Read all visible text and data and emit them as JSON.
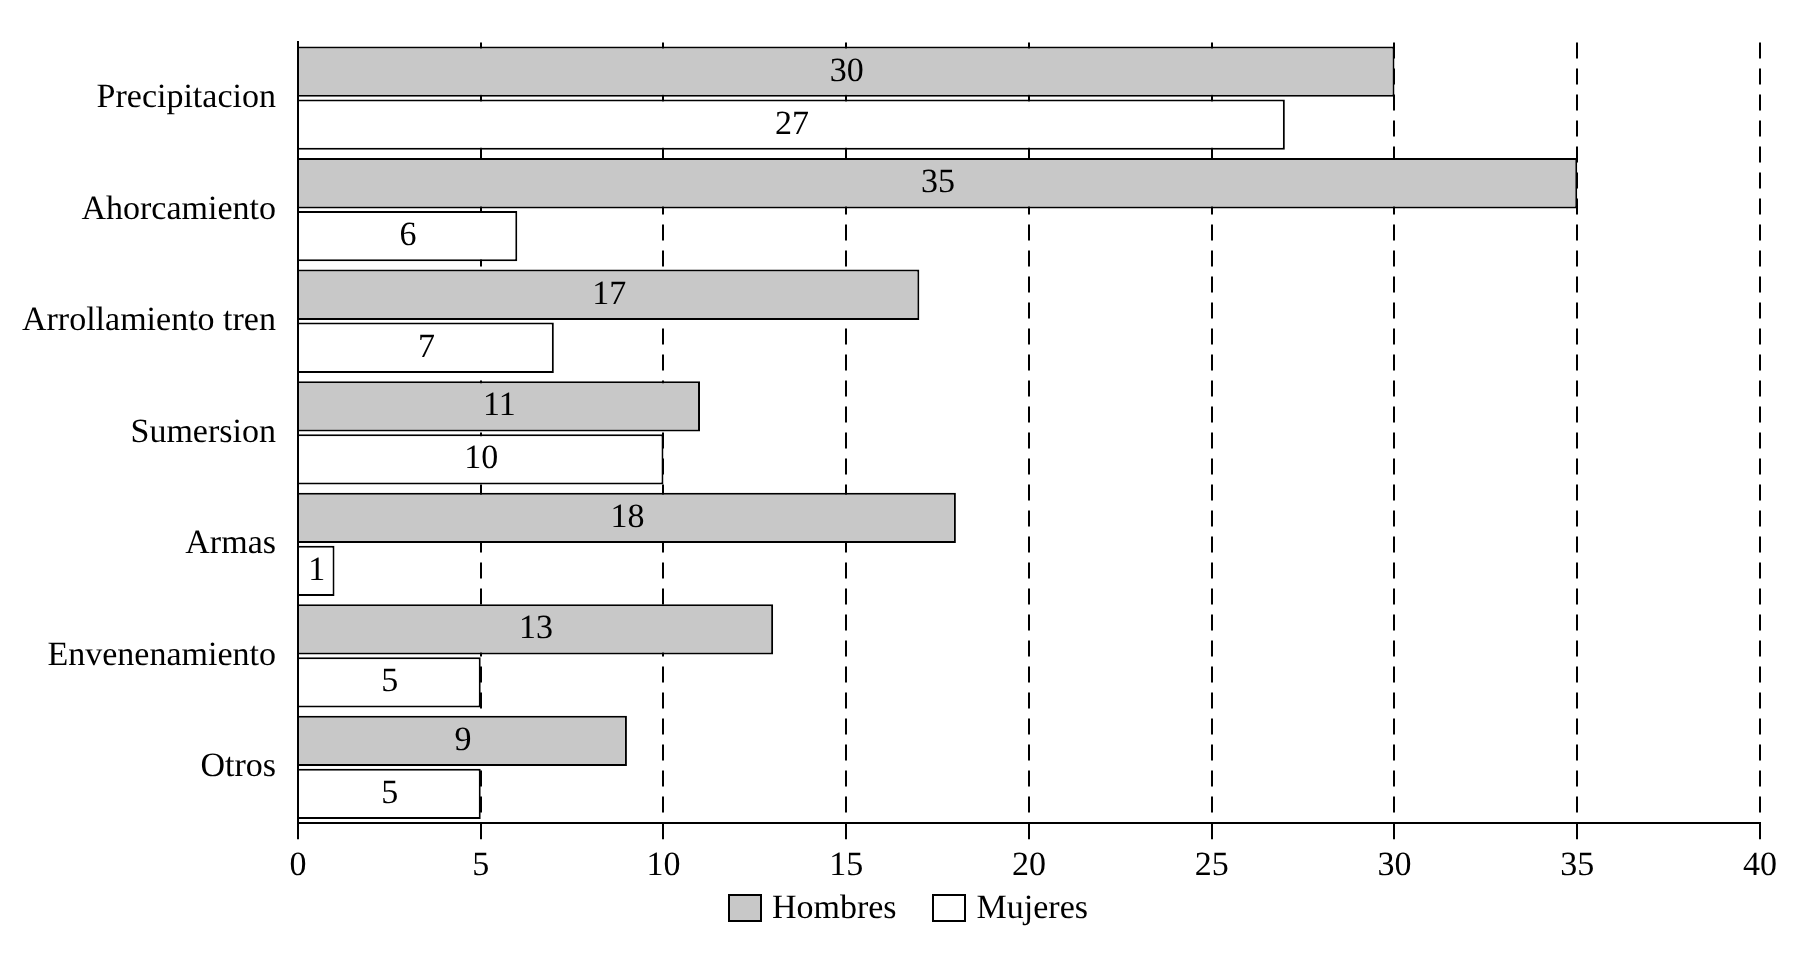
{
  "chart_data": {
    "type": "bar",
    "orientation": "horizontal",
    "categories": [
      "Precipitacion",
      "Ahorcamiento",
      "Arrollamiento tren",
      "Sumersion",
      "Armas",
      "Envenenamiento",
      "Otros"
    ],
    "series": [
      {
        "name": "Hombres",
        "color": "#c8c8c8",
        "values": [
          30,
          35,
          17,
          11,
          18,
          13,
          9
        ]
      },
      {
        "name": "Mujeres",
        "color": "#ffffff",
        "values": [
          27,
          6,
          7,
          10,
          1,
          5,
          5
        ]
      }
    ],
    "xlim": [
      0,
      40
    ],
    "xticks": [
      0,
      5,
      10,
      15,
      20,
      25,
      30,
      35,
      40
    ],
    "grid": "x",
    "legend": "bottom",
    "data_labels": true
  }
}
